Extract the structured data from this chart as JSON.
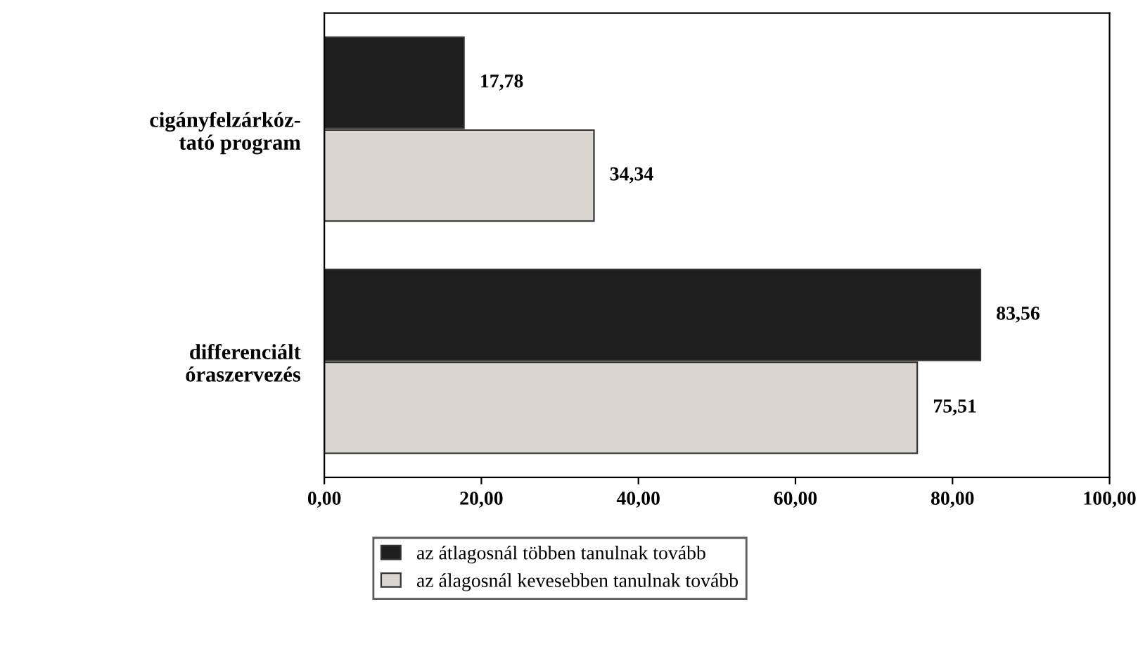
{
  "chart_data": {
    "type": "bar",
    "orientation": "horizontal",
    "categories": [
      "cigányfelzárkóz-\ntató program",
      "differenciált\nóraszervezés"
    ],
    "series": [
      {
        "name": "az átlagosnál többen tanulnak tovább",
        "color": "#1e1e1e",
        "values": [
          17.78,
          83.56
        ],
        "value_labels": [
          "17,78",
          "83,56"
        ]
      },
      {
        "name": "az álagosnál kevesebben tanulnak tovább",
        "color": "#d9d6d0",
        "values": [
          34.34,
          75.51
        ],
        "value_labels": [
          "34,34",
          "75,51"
        ]
      }
    ],
    "xlim": [
      0,
      100
    ],
    "xticks": [
      {
        "value": 0,
        "label": "0,00"
      },
      {
        "value": 20,
        "label": "20,00"
      },
      {
        "value": 40,
        "label": "40,00"
      },
      {
        "value": 60,
        "label": "60,00"
      },
      {
        "value": 80,
        "label": "80,00"
      },
      {
        "value": 100,
        "label": "100,00"
      }
    ],
    "grid": false,
    "legend": "bottom"
  }
}
